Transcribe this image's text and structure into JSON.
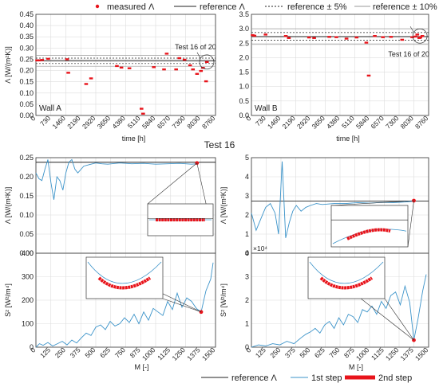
{
  "figure": {
    "legend_top": {
      "measured": "measured Λ",
      "reference": "reference Λ",
      "ref5": "reference ± 5%",
      "ref10": "reference ± 10%"
    },
    "test_title": "Test 16",
    "legend_bottom": {
      "reference": "reference Λ",
      "step1": "1st step",
      "step2": "2nd step"
    }
  },
  "colors": {
    "measured": "#e8141b",
    "step1": "#3b93c9",
    "step2": "#e8141b",
    "reference": "#222222",
    "grid": "#dddddd"
  },
  "chart_data": [
    {
      "id": "wallA",
      "type": "scatter",
      "panel_label": "Wall A",
      "xlabel": "time [h]",
      "ylabel": "Λ [W/(m²K)]",
      "xlim": [
        0,
        8760
      ],
      "ylim": [
        0,
        0.45
      ],
      "xticks": [
        0,
        730,
        1460,
        2190,
        2920,
        3650,
        4380,
        5110,
        5840,
        6570,
        7300,
        8030,
        8760
      ],
      "yticks": [
        0,
        0.05,
        0.1,
        0.15,
        0.2,
        0.25,
        0.3,
        0.35,
        0.4,
        0.45
      ],
      "reference": 0.243,
      "band5": [
        0.231,
        0.255
      ],
      "band10": [
        0.219,
        0.267
      ],
      "annotation": {
        "text": "Test 16 of 20",
        "x": 8330,
        "y": 0.238
      },
      "points": [
        [
          60,
          0.245
        ],
        [
          150,
          0.245
        ],
        [
          300,
          0.247
        ],
        [
          600,
          0.252
        ],
        [
          1520,
          0.25
        ],
        [
          1580,
          0.19
        ],
        [
          2450,
          0.14
        ],
        [
          2690,
          0.165
        ],
        [
          3950,
          0.22
        ],
        [
          4170,
          0.213
        ],
        [
          4560,
          0.21
        ],
        [
          5150,
          0.03
        ],
        [
          5230,
          0.008
        ],
        [
          5750,
          0.215
        ],
        [
          6250,
          0.205
        ],
        [
          6380,
          0.275
        ],
        [
          6840,
          0.205
        ],
        [
          7000,
          0.255
        ],
        [
          7250,
          0.248
        ],
        [
          7520,
          0.223
        ],
        [
          7660,
          0.205
        ],
        [
          7860,
          0.185
        ],
        [
          8050,
          0.198
        ],
        [
          8150,
          0.212
        ],
        [
          8300,
          0.152
        ],
        [
          8340,
          0.238
        ]
      ]
    },
    {
      "id": "wallB",
      "type": "scatter",
      "panel_label": "Wall B",
      "xlabel": "time [h]",
      "xlim": [
        0,
        8760
      ],
      "ylim": [
        0,
        3.5
      ],
      "xticks": [
        0,
        730,
        1460,
        2190,
        2920,
        3650,
        4380,
        5110,
        5840,
        6570,
        7300,
        8030,
        8760
      ],
      "yticks": [
        0,
        0.5,
        1,
        1.5,
        2,
        2.5,
        3,
        3.5
      ],
      "reference": 2.73,
      "band5": [
        2.6,
        2.87
      ],
      "band10": [
        2.46,
        3.0
      ],
      "annotation": {
        "text": "Test 16 of 20",
        "x": 8330,
        "y": 2.75
      },
      "points": [
        [
          60,
          2.78
        ],
        [
          150,
          2.76
        ],
        [
          700,
          2.8
        ],
        [
          1700,
          2.75
        ],
        [
          1850,
          2.68
        ],
        [
          2850,
          2.7
        ],
        [
          3100,
          2.68
        ],
        [
          3850,
          2.72
        ],
        [
          4200,
          2.71
        ],
        [
          4700,
          2.66
        ],
        [
          5200,
          2.7
        ],
        [
          5680,
          2.52
        ],
        [
          5800,
          1.38
        ],
        [
          6100,
          2.75
        ],
        [
          6500,
          2.71
        ],
        [
          6900,
          2.72
        ],
        [
          7450,
          2.62
        ],
        [
          7950,
          2.71
        ],
        [
          8100,
          2.73
        ],
        [
          8200,
          2.8
        ],
        [
          8300,
          2.68
        ],
        [
          8350,
          2.7
        ],
        [
          8450,
          2.75
        ]
      ]
    },
    {
      "id": "lambdaA",
      "type": "line",
      "ylabel": "Λ [W/(m²K)]",
      "xlim": [
        0,
        1500
      ],
      "ylim": [
        0,
        0.25
      ],
      "yticks": [
        0,
        0.05,
        0.1,
        0.15,
        0.2,
        0.25
      ],
      "reference": 0.238,
      "series": [
        {
          "name": "1st step",
          "x": [
            0,
            25,
            50,
            75,
            100,
            125,
            150,
            175,
            200,
            225,
            250,
            275,
            300,
            325,
            350,
            400,
            450,
            500,
            550,
            600,
            700,
            800,
            900,
            1000,
            1100,
            1200,
            1300,
            1345
          ],
          "y": [
            0.21,
            0.195,
            0.19,
            0.22,
            0.245,
            0.185,
            0.14,
            0.2,
            0.19,
            0.165,
            0.21,
            0.238,
            0.245,
            0.22,
            0.21,
            0.228,
            0.232,
            0.236,
            0.234,
            0.233,
            0.236,
            0.234,
            0.235,
            0.233,
            0.234,
            0.235,
            0.233,
            0.234
          ]
        },
        {
          "name": "2nd step",
          "x": [
            1345
          ],
          "y": [
            0.236
          ]
        }
      ]
    },
    {
      "id": "lambdaB",
      "type": "line",
      "ylabel": "Λ [W/(m²K)]",
      "xlim": [
        0,
        1500
      ],
      "ylim": [
        0,
        5
      ],
      "yticks": [
        0,
        1,
        2,
        3,
        4,
        5
      ],
      "reference": 2.73,
      "series": [
        {
          "name": "1st step",
          "x": [
            0,
            40,
            80,
            120,
            160,
            200,
            230,
            260,
            290,
            320,
            350,
            380,
            420,
            460,
            500,
            550,
            600,
            700,
            800,
            900,
            1000,
            1100,
            1200,
            1300,
            1375
          ],
          "y": [
            2.1,
            1.2,
            1.8,
            2.4,
            2.6,
            2.1,
            1.0,
            4.8,
            0.8,
            1.6,
            2.2,
            2.5,
            2.2,
            2.4,
            2.5,
            2.6,
            2.55,
            2.6,
            2.6,
            2.65,
            2.62,
            2.66,
            2.65,
            2.68,
            2.72
          ]
        },
        {
          "name": "2nd step",
          "x": [
            1375
          ],
          "y": [
            2.75
          ]
        }
      ]
    },
    {
      "id": "s2A",
      "type": "line",
      "ylabel": "S² [W²/m⁴]",
      "xlabel": "M [-]",
      "xlim": [
        0,
        1500
      ],
      "ylim": [
        0,
        400
      ],
      "xticks": [
        0,
        125,
        250,
        375,
        500,
        625,
        750,
        875,
        1000,
        1125,
        1250,
        1375,
        1500
      ],
      "yticks": [
        0,
        100,
        200,
        300,
        400
      ],
      "series": [
        {
          "name": "1st step",
          "x": [
            0,
            30,
            60,
            100,
            140,
            180,
            220,
            260,
            300,
            340,
            380,
            420,
            460,
            500,
            540,
            580,
            620,
            660,
            700,
            740,
            780,
            820,
            860,
            900,
            940,
            980,
            1020,
            1060,
            1100,
            1140,
            1180,
            1220,
            1260,
            1300,
            1340,
            1380,
            1420,
            1460,
            1480
          ],
          "y": [
            0,
            15,
            8,
            20,
            5,
            15,
            25,
            10,
            30,
            18,
            40,
            60,
            50,
            85,
            95,
            75,
            110,
            90,
            100,
            125,
            105,
            140,
            100,
            150,
            115,
            165,
            150,
            135,
            195,
            160,
            230,
            170,
            210,
            195,
            165,
            150,
            240,
            290,
            360
          ]
        },
        {
          "name": "2nd step",
          "x": [
            1380
          ],
          "y": [
            150
          ]
        }
      ]
    },
    {
      "id": "s2B",
      "type": "line",
      "ylabel": "S² [W²/m⁴]",
      "xlabel": "M [-]",
      "y_exponent": "×10⁴",
      "xlim": [
        0,
        1500
      ],
      "ylim": [
        0,
        40000
      ],
      "xticks": [
        0,
        125,
        250,
        375,
        500,
        625,
        750,
        875,
        1000,
        1125,
        1250,
        1375,
        1500
      ],
      "yticks": [
        0,
        10000,
        20000,
        30000,
        40000
      ],
      "series": [
        {
          "name": "1st step",
          "x": [
            0,
            60,
            120,
            180,
            240,
            300,
            360,
            420,
            460,
            500,
            540,
            580,
            620,
            660,
            700,
            740,
            780,
            820,
            860,
            900,
            940,
            980,
            1020,
            1060,
            1100,
            1140,
            1180,
            1220,
            1260,
            1300,
            1340,
            1375,
            1410,
            1450,
            1480
          ],
          "y": [
            0,
            1000,
            500,
            1500,
            1000,
            2500,
            1500,
            4000,
            5500,
            6500,
            8000,
            6000,
            9500,
            11000,
            8000,
            12500,
            9500,
            14000,
            13000,
            10500,
            16000,
            15000,
            17500,
            14000,
            19500,
            16500,
            22000,
            23500,
            18000,
            26000,
            19000,
            3000,
            12000,
            24000,
            31000
          ]
        },
        {
          "name": "2nd step",
          "x": [
            1375
          ],
          "y": [
            3000
          ]
        }
      ]
    }
  ]
}
